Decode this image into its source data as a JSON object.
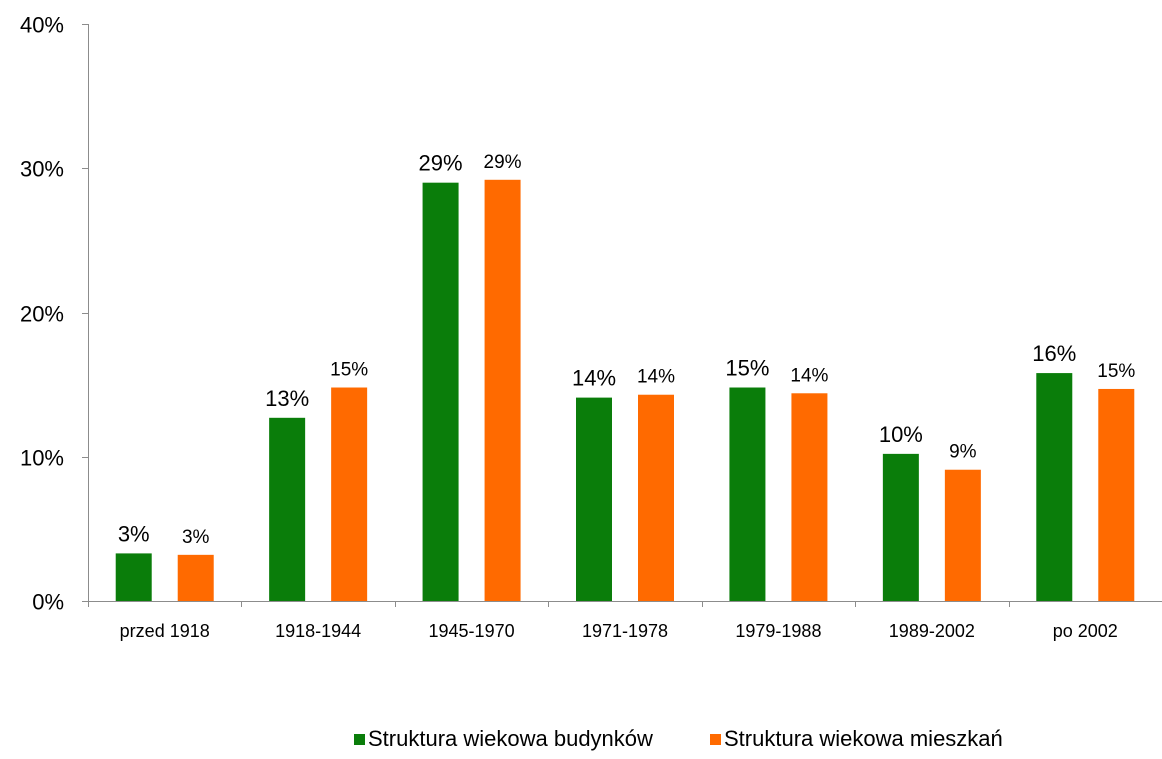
{
  "chart_data": {
    "type": "bar",
    "title": "",
    "xlabel": "",
    "ylabel": "",
    "categories": [
      "przed 1918",
      "1918-1944",
      "1945-1970",
      "1971-1978",
      "1979-1988",
      "1989-2002",
      "po 2002"
    ],
    "series": [
      {
        "name": "Struktura wiekowa budynków",
        "color": "#0a7d0a",
        "values": [
          3.3,
          12.7,
          29.0,
          14.1,
          14.8,
          10.2,
          15.8
        ],
        "labels": [
          "3%",
          "13%",
          "29%",
          "14%",
          "15%",
          "10%",
          "16%"
        ]
      },
      {
        "name": "Struktura wiekowa mieszkań",
        "color": "#ff6a00",
        "values": [
          3.2,
          14.8,
          29.2,
          14.3,
          14.4,
          9.1,
          14.7
        ],
        "labels": [
          "3%",
          "15%",
          "29%",
          "14%",
          "14%",
          "9%",
          "15%"
        ]
      }
    ],
    "ylim": [
      0,
      40
    ],
    "yticks": [
      0,
      10,
      20,
      30,
      40
    ],
    "ytick_labels": [
      "0%",
      "10%",
      "20%",
      "30%",
      "40%"
    ],
    "grid": false,
    "legend_position": "bottom-center"
  }
}
